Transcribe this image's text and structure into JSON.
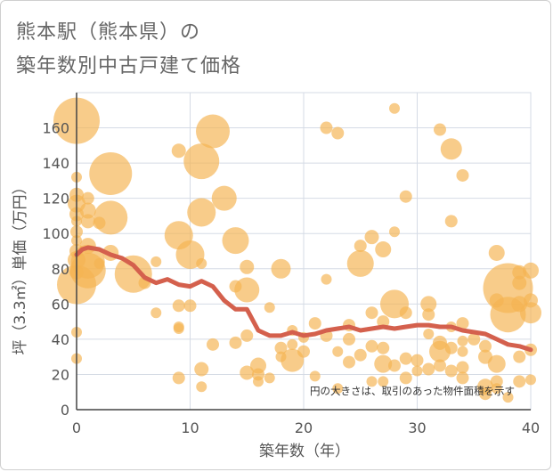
{
  "chart_data": {
    "type": "scatter",
    "title_line1": "熊本駅（熊本県）の",
    "title_line2": "築年数別中古戸建て価格",
    "xlabel": "築年数（年）",
    "ylabel": "坪（3.3㎡）単価（万円）",
    "note": "円の大きさは、取引のあった物件面積を示す",
    "xlim": [
      0,
      40
    ],
    "ylim": [
      0,
      180
    ],
    "x_ticks": [
      0,
      10,
      20,
      30,
      40
    ],
    "y_ticks": [
      0,
      20,
      40,
      60,
      80,
      100,
      120,
      140,
      160
    ],
    "colors": {
      "bubble": "#f5b452",
      "line": "#d4604d",
      "grid": "#d5dbe5",
      "plot_bg": "#ffffff",
      "tick": "#555555"
    },
    "bubbles": [
      {
        "x": 0,
        "y": 164,
        "s": 26
      },
      {
        "x": 0,
        "y": 132,
        "s": 6
      },
      {
        "x": 0,
        "y": 122,
        "s": 8
      },
      {
        "x": 0,
        "y": 117,
        "s": 10
      },
      {
        "x": 0,
        "y": 111,
        "s": 8
      },
      {
        "x": 0,
        "y": 107,
        "s": 6
      },
      {
        "x": 0,
        "y": 101,
        "s": 7
      },
      {
        "x": 0,
        "y": 96,
        "s": 6
      },
      {
        "x": 0,
        "y": 90,
        "s": 8
      },
      {
        "x": 0,
        "y": 85,
        "s": 10
      },
      {
        "x": 0,
        "y": 78,
        "s": 8
      },
      {
        "x": 0,
        "y": 71,
        "s": 22
      },
      {
        "x": 0,
        "y": 44,
        "s": 6
      },
      {
        "x": 0,
        "y": 29,
        "s": 6
      },
      {
        "x": 1,
        "y": 120,
        "s": 7
      },
      {
        "x": 1,
        "y": 113,
        "s": 9
      },
      {
        "x": 1,
        "y": 107,
        "s": 8
      },
      {
        "x": 1,
        "y": 93,
        "s": 9
      },
      {
        "x": 1,
        "y": 84,
        "s": 19
      },
      {
        "x": 1,
        "y": 79,
        "s": 20
      },
      {
        "x": 2,
        "y": 106,
        "s": 7
      },
      {
        "x": 2,
        "y": 83,
        "s": 6
      },
      {
        "x": 3,
        "y": 134,
        "s": 24
      },
      {
        "x": 3,
        "y": 109,
        "s": 19
      },
      {
        "x": 3,
        "y": 89,
        "s": 9
      },
      {
        "x": 5,
        "y": 77,
        "s": 21
      },
      {
        "x": 6,
        "y": 72,
        "s": 7
      },
      {
        "x": 7,
        "y": 84,
        "s": 6
      },
      {
        "x": 7,
        "y": 55,
        "s": 6
      },
      {
        "x": 9,
        "y": 147,
        "s": 8
      },
      {
        "x": 9,
        "y": 99,
        "s": 16
      },
      {
        "x": 9,
        "y": 59,
        "s": 7
      },
      {
        "x": 9,
        "y": 47,
        "s": 6
      },
      {
        "x": 9,
        "y": 46,
        "s": 6
      },
      {
        "x": 9,
        "y": 18,
        "s": 7
      },
      {
        "x": 10,
        "y": 88,
        "s": 16
      },
      {
        "x": 10,
        "y": 59,
        "s": 7
      },
      {
        "x": 11,
        "y": 141,
        "s": 20
      },
      {
        "x": 11,
        "y": 112,
        "s": 16
      },
      {
        "x": 11,
        "y": 83,
        "s": 6
      },
      {
        "x": 11,
        "y": 23,
        "s": 8
      },
      {
        "x": 11,
        "y": 13,
        "s": 6
      },
      {
        "x": 12,
        "y": 158,
        "s": 19
      },
      {
        "x": 12,
        "y": 37,
        "s": 7
      },
      {
        "x": 13,
        "y": 120,
        "s": 14
      },
      {
        "x": 14,
        "y": 96,
        "s": 15
      },
      {
        "x": 14,
        "y": 70,
        "s": 7
      },
      {
        "x": 14,
        "y": 38,
        "s": 7
      },
      {
        "x": 15,
        "y": 81,
        "s": 8
      },
      {
        "x": 15,
        "y": 68,
        "s": 14
      },
      {
        "x": 15,
        "y": 42,
        "s": 7
      },
      {
        "x": 15,
        "y": 21,
        "s": 8
      },
      {
        "x": 16,
        "y": 25,
        "s": 9
      },
      {
        "x": 16,
        "y": 20,
        "s": 7
      },
      {
        "x": 16,
        "y": 16,
        "s": 6
      },
      {
        "x": 17,
        "y": 58,
        "s": 6
      },
      {
        "x": 17,
        "y": 18,
        "s": 6
      },
      {
        "x": 18,
        "y": 80,
        "s": 11
      },
      {
        "x": 18,
        "y": 35,
        "s": 7
      },
      {
        "x": 18,
        "y": 30,
        "s": 6
      },
      {
        "x": 19,
        "y": 45,
        "s": 6
      },
      {
        "x": 19,
        "y": 37,
        "s": 6
      },
      {
        "x": 19,
        "y": 28,
        "s": 13
      },
      {
        "x": 20,
        "y": 33,
        "s": 7
      },
      {
        "x": 20,
        "y": 41,
        "s": 6
      },
      {
        "x": 21,
        "y": 49,
        "s": 7
      },
      {
        "x": 21,
        "y": 19,
        "s": 6
      },
      {
        "x": 22,
        "y": 160,
        "s": 7
      },
      {
        "x": 22,
        "y": 74,
        "s": 6
      },
      {
        "x": 22,
        "y": 42,
        "s": 7
      },
      {
        "x": 23,
        "y": 157,
        "s": 7
      },
      {
        "x": 23,
        "y": 33,
        "s": 6
      },
      {
        "x": 23,
        "y": 12,
        "s": 6
      },
      {
        "x": 24,
        "y": 48,
        "s": 7
      },
      {
        "x": 24,
        "y": 40,
        "s": 7
      },
      {
        "x": 24,
        "y": 27,
        "s": 7
      },
      {
        "x": 25,
        "y": 93,
        "s": 7
      },
      {
        "x": 25,
        "y": 83,
        "s": 15
      },
      {
        "x": 25,
        "y": 31,
        "s": 7
      },
      {
        "x": 26,
        "y": 98,
        "s": 8
      },
      {
        "x": 26,
        "y": 55,
        "s": 7
      },
      {
        "x": 26,
        "y": 36,
        "s": 7
      },
      {
        "x": 26,
        "y": 16,
        "s": 6
      },
      {
        "x": 27,
        "y": 91,
        "s": 9
      },
      {
        "x": 27,
        "y": 50,
        "s": 7
      },
      {
        "x": 27,
        "y": 35,
        "s": 7
      },
      {
        "x": 27,
        "y": 26,
        "s": 10
      },
      {
        "x": 27,
        "y": 16,
        "s": 6
      },
      {
        "x": 28,
        "y": 171,
        "s": 6
      },
      {
        "x": 28,
        "y": 101,
        "s": 6
      },
      {
        "x": 28,
        "y": 60,
        "s": 16
      },
      {
        "x": 28,
        "y": 25,
        "s": 7
      },
      {
        "x": 29,
        "y": 121,
        "s": 7
      },
      {
        "x": 29,
        "y": 55,
        "s": 7
      },
      {
        "x": 29,
        "y": 29,
        "s": 7
      },
      {
        "x": 29,
        "y": 18,
        "s": 7
      },
      {
        "x": 30,
        "y": 28,
        "s": 7
      },
      {
        "x": 30,
        "y": 22,
        "s": 6
      },
      {
        "x": 31,
        "y": 60,
        "s": 9
      },
      {
        "x": 31,
        "y": 54,
        "s": 7
      },
      {
        "x": 31,
        "y": 43,
        "s": 6
      },
      {
        "x": 31,
        "y": 23,
        "s": 7
      },
      {
        "x": 32,
        "y": 159,
        "s": 7
      },
      {
        "x": 32,
        "y": 38,
        "s": 8
      },
      {
        "x": 32,
        "y": 33,
        "s": 12
      },
      {
        "x": 32,
        "y": 25,
        "s": 7
      },
      {
        "x": 33,
        "y": 148,
        "s": 12
      },
      {
        "x": 33,
        "y": 107,
        "s": 7
      },
      {
        "x": 33,
        "y": 47,
        "s": 6
      },
      {
        "x": 33,
        "y": 35,
        "s": 7
      },
      {
        "x": 33,
        "y": 22,
        "s": 7
      },
      {
        "x": 34,
        "y": 133,
        "s": 7
      },
      {
        "x": 34,
        "y": 49,
        "s": 7
      },
      {
        "x": 34,
        "y": 39,
        "s": 6
      },
      {
        "x": 34,
        "y": 33,
        "s": 6
      },
      {
        "x": 34,
        "y": 24,
        "s": 7
      },
      {
        "x": 34,
        "y": 18,
        "s": 7
      },
      {
        "x": 35,
        "y": 40,
        "s": 7
      },
      {
        "x": 36,
        "y": 36,
        "s": 7
      },
      {
        "x": 36,
        "y": 30,
        "s": 8
      },
      {
        "x": 36,
        "y": 13,
        "s": 9
      },
      {
        "x": 36,
        "y": 9,
        "s": 7
      },
      {
        "x": 37,
        "y": 89,
        "s": 9
      },
      {
        "x": 37,
        "y": 62,
        "s": 8
      },
      {
        "x": 37,
        "y": 26,
        "s": 10
      },
      {
        "x": 37,
        "y": 16,
        "s": 7
      },
      {
        "x": 37,
        "y": 12,
        "s": 6
      },
      {
        "x": 38,
        "y": 69,
        "s": 28
      },
      {
        "x": 38,
        "y": 54,
        "s": 20
      },
      {
        "x": 38,
        "y": 7,
        "s": 6
      },
      {
        "x": 39,
        "y": 78,
        "s": 8
      },
      {
        "x": 39,
        "y": 72,
        "s": 8
      },
      {
        "x": 39,
        "y": 60,
        "s": 9
      },
      {
        "x": 39,
        "y": 30,
        "s": 7
      },
      {
        "x": 39,
        "y": 16,
        "s": 7
      },
      {
        "x": 40,
        "y": 79,
        "s": 9
      },
      {
        "x": 40,
        "y": 62,
        "s": 8
      },
      {
        "x": 40,
        "y": 55,
        "s": 12
      },
      {
        "x": 40,
        "y": 34,
        "s": 7
      },
      {
        "x": 40,
        "y": 17,
        "s": 6
      }
    ],
    "trend": {
      "x": [
        0,
        0.5,
        1,
        2,
        3,
        4,
        5,
        6,
        7,
        8,
        9,
        10,
        11,
        12,
        13,
        14,
        15,
        16,
        17,
        18,
        19,
        20,
        21,
        22,
        23,
        24,
        25,
        26,
        27,
        28,
        29,
        30,
        31,
        32,
        33,
        34,
        35,
        36,
        37,
        38,
        39,
        40
      ],
      "y": [
        88,
        91,
        92,
        91,
        88,
        86,
        82,
        75,
        72,
        74,
        71,
        70,
        73,
        70,
        62,
        57,
        57,
        45,
        42,
        42,
        44,
        42,
        43,
        45,
        46,
        47,
        45,
        46,
        47,
        46,
        47,
        48,
        48,
        47,
        47,
        45,
        44,
        43,
        40,
        37,
        36,
        34
      ]
    }
  }
}
